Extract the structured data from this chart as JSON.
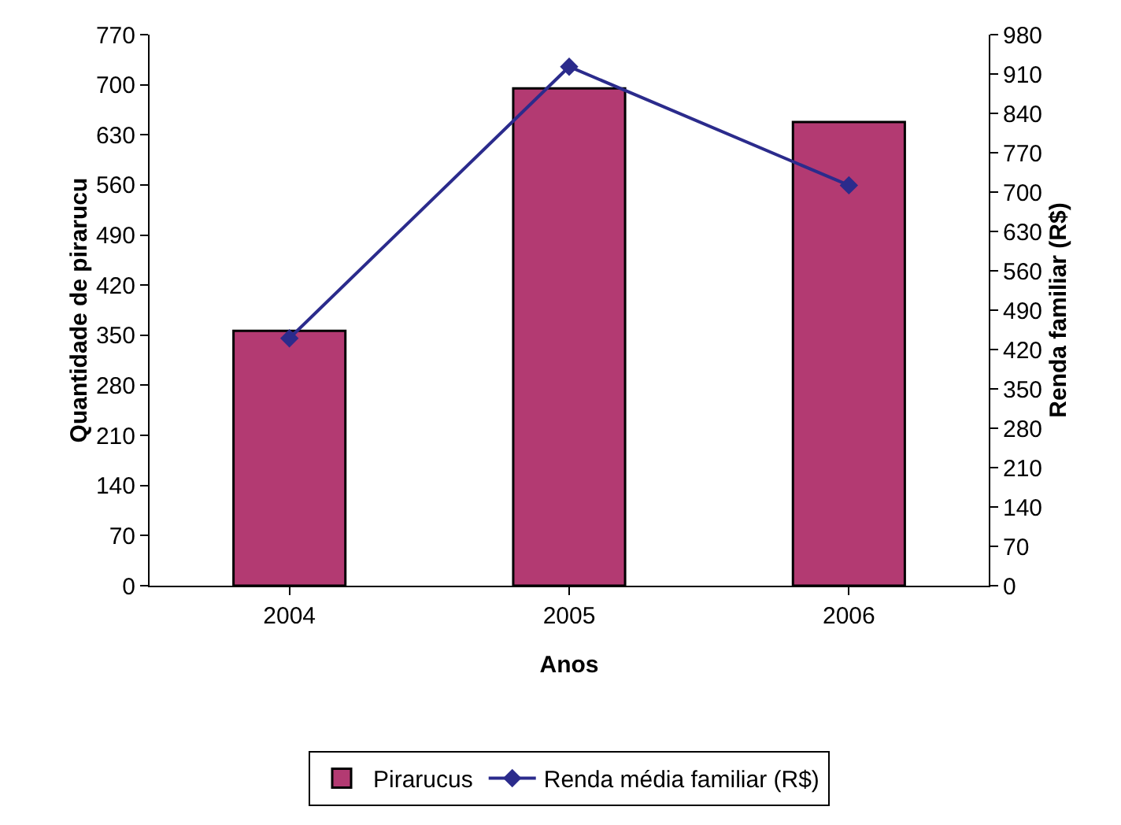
{
  "chart_data": {
    "type": "bar",
    "xlabel": "Anos",
    "ylabel": "Quantidade de pirarucu",
    "y2label": "Renda familiar (R$)",
    "categories": [
      "2004",
      "2005",
      "2006"
    ],
    "series": [
      {
        "name": "Pirarucus",
        "color": "#b33a72",
        "values": [
          356,
          695,
          648
        ]
      },
      {
        "name": "Renda média familiar (R$)",
        "type": "line",
        "axis": "y2",
        "color": "#2b2b8c",
        "marker": "diamond",
        "values": [
          440,
          923,
          712
        ]
      }
    ],
    "ylim": [
      0,
      770
    ],
    "yticks": [
      0,
      70,
      140,
      210,
      280,
      350,
      420,
      490,
      560,
      630,
      700,
      770
    ],
    "y2lim": [
      0,
      980
    ],
    "y2ticks": [
      0,
      70,
      140,
      210,
      280,
      350,
      420,
      490,
      560,
      630,
      700,
      770,
      840,
      910,
      980
    ],
    "grid": false,
    "legend": "bottom"
  }
}
